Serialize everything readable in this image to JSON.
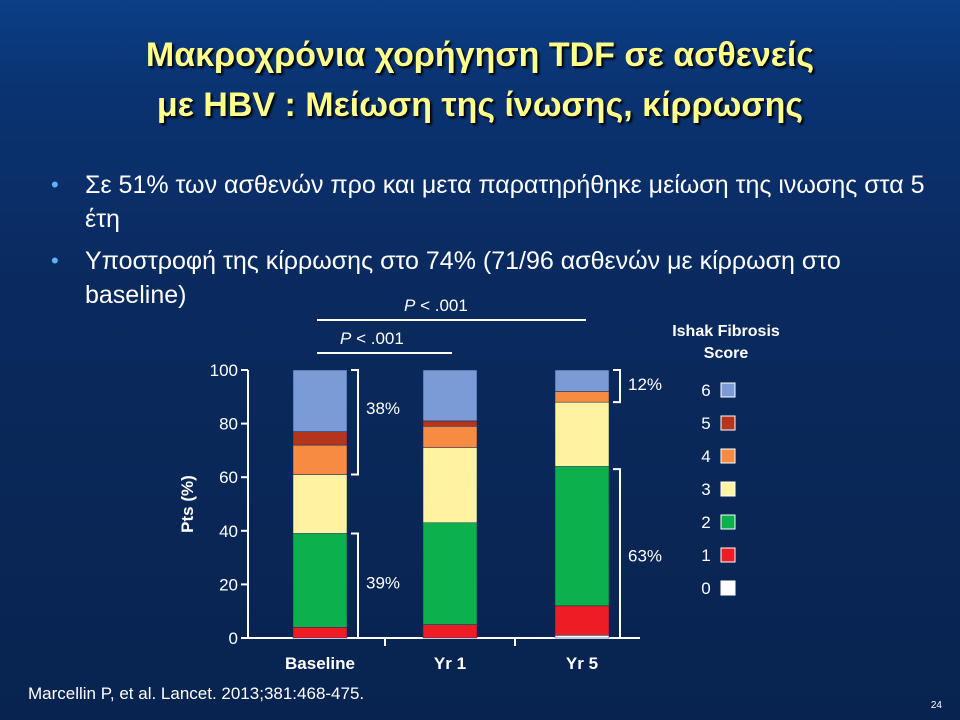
{
  "slide": {
    "title_line1": "Μακροχρόνια χορήγηση TDF σε ασθενείς",
    "title_line2": "με HBV : Μείωση της ίνωσης, κίρρωσης",
    "bullets": [
      "Σε 51% των ασθενών προ και μετα παρατηρήθηκε μείωση της ινωσης στα 5 έτη",
      "Υποστροφή της κίρρωσης στο 74% (71/96 ασθενών με κίρρωση στο baseline)"
    ],
    "citation": "Marcellin P, et al. Lancet. 2013;381:468-475.",
    "slide_number": "24"
  },
  "colors": {
    "title": "#ffff8c",
    "bullet": "#5fb0ff",
    "score": {
      "6": "#7b9bd6",
      "5": "#b4341c",
      "4": "#f78b42",
      "3": "#fff3a1",
      "2": "#0db14b",
      "1": "#ee1c24",
      "0": "#ffffff"
    }
  },
  "chart_data": {
    "type": "bar",
    "stacked": true,
    "ylabel": "Pts (%)",
    "ylim": [
      0,
      100
    ],
    "yticks": [
      0,
      20,
      40,
      60,
      80,
      100
    ],
    "categories": [
      "Baseline",
      "Yr 1",
      "Yr 5"
    ],
    "series": [
      {
        "name": "0",
        "values": [
          0,
          0,
          1
        ]
      },
      {
        "name": "1",
        "values": [
          4,
          5,
          11
        ]
      },
      {
        "name": "2",
        "values": [
          35,
          38,
          52
        ]
      },
      {
        "name": "3",
        "values": [
          22,
          28,
          24
        ]
      },
      {
        "name": "4",
        "values": [
          11,
          8,
          4
        ]
      },
      {
        "name": "5",
        "values": [
          5,
          2,
          0
        ]
      },
      {
        "name": "6",
        "values": [
          23,
          19,
          8
        ]
      }
    ],
    "legend": {
      "title": "Ishak Fibrosis Score",
      "placement": "right",
      "order": [
        "6",
        "5",
        "4",
        "3",
        "2",
        "1",
        "0"
      ]
    },
    "annotations": [
      {
        "text": "38%",
        "category": "Baseline",
        "from": 61,
        "to": 100
      },
      {
        "text": "39%",
        "category": "Baseline",
        "from": 0,
        "to": 39
      },
      {
        "text": "12%",
        "category": "Yr 5",
        "from": 88,
        "to": 100
      },
      {
        "text": "63%",
        "category": "Yr 5",
        "from": 0,
        "to": 63
      }
    ],
    "significance": [
      {
        "p": "P",
        "rest": " < .001",
        "from": "Baseline",
        "to": "Yr 5"
      },
      {
        "p": "P",
        "rest": " < .001",
        "from": "Baseline",
        "to": "Yr 1"
      }
    ]
  }
}
